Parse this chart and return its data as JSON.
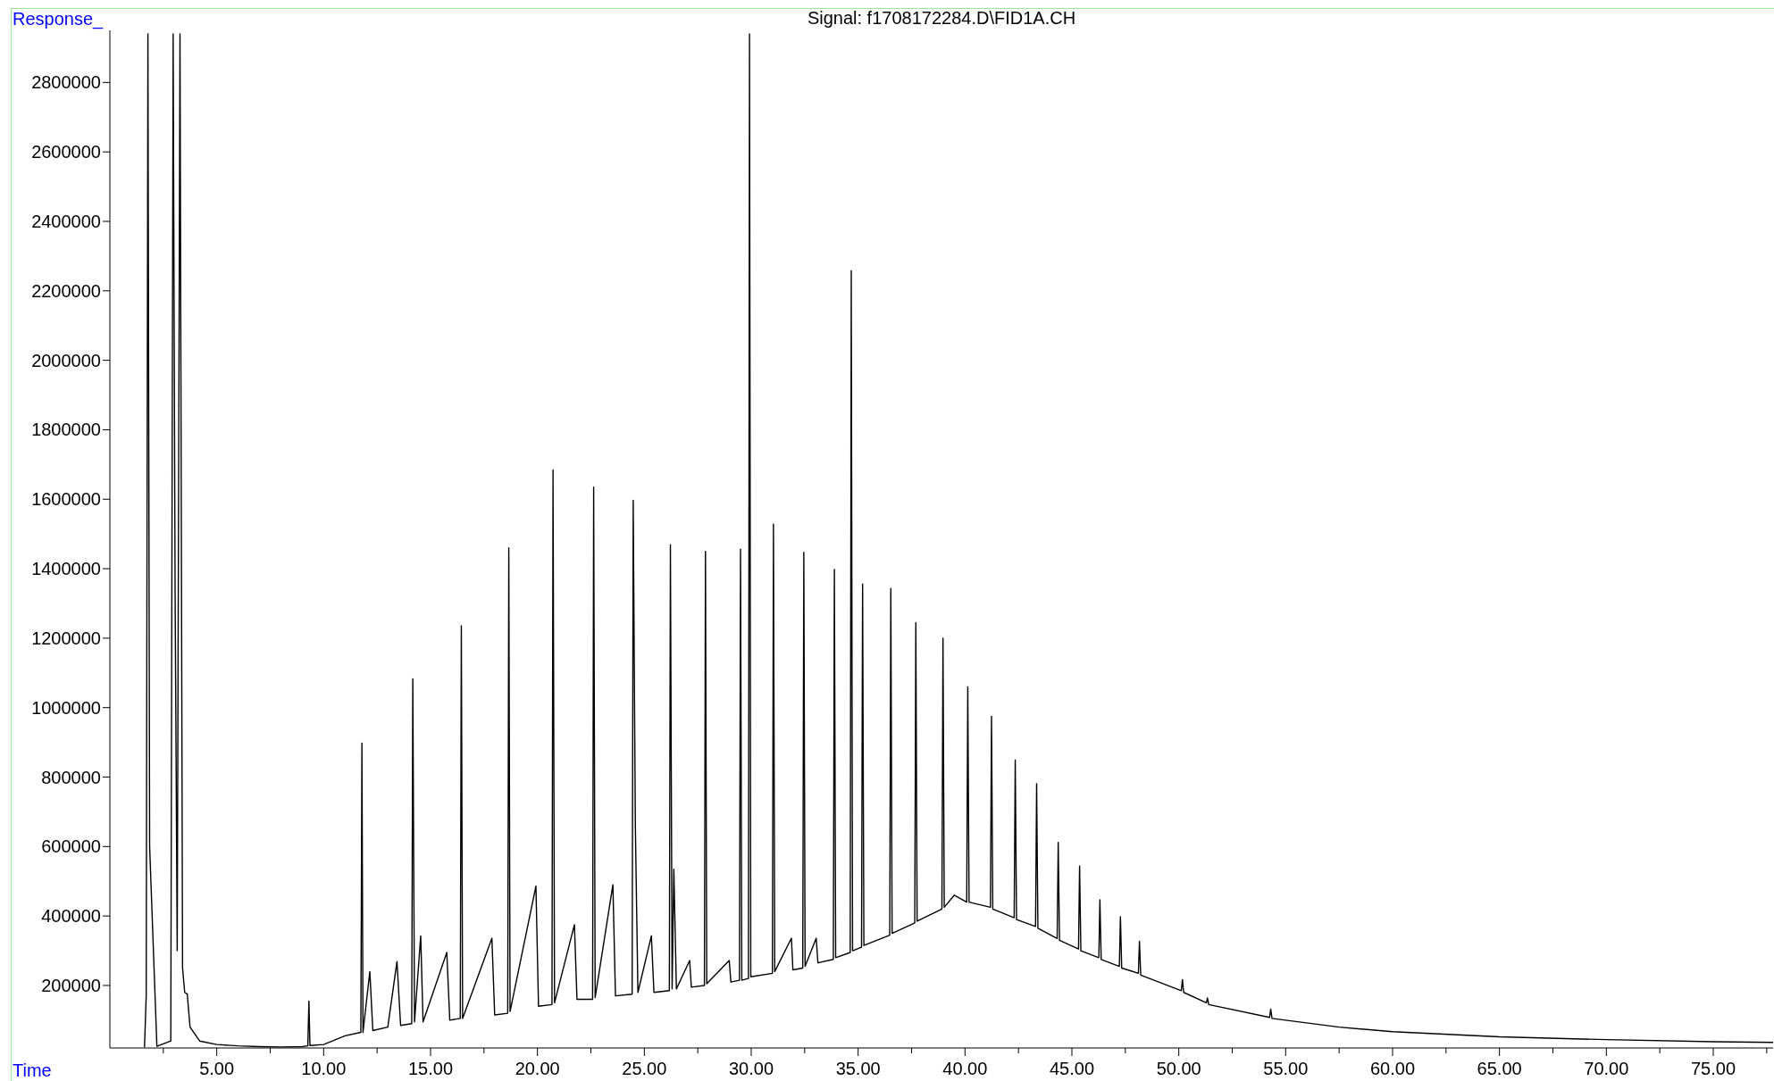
{
  "chart_data": {
    "type": "line",
    "title": "Signal: f1708172284.D\\FID1A.CH",
    "xlabel": "Time",
    "ylabel": "Response_",
    "line_style": "solid",
    "xlim": [
      0,
      77.8
    ],
    "ylim": [
      20000,
      2950000
    ],
    "xticks": [
      {
        "value": 2.5,
        "label": null
      },
      {
        "value": 5,
        "label": "5.00"
      },
      {
        "value": 7.5,
        "label": null
      },
      {
        "value": 10,
        "label": "10.00"
      },
      {
        "value": 12.5,
        "label": null
      },
      {
        "value": 15,
        "label": "15.00"
      },
      {
        "value": 17.5,
        "label": null
      },
      {
        "value": 20,
        "label": "20.00"
      },
      {
        "value": 22.5,
        "label": null
      },
      {
        "value": 25,
        "label": "25.00"
      },
      {
        "value": 27.5,
        "label": null
      },
      {
        "value": 30,
        "label": "30.00"
      },
      {
        "value": 32.5,
        "label": null
      },
      {
        "value": 35,
        "label": "35.00"
      },
      {
        "value": 37.5,
        "label": null
      },
      {
        "value": 40,
        "label": "40.00"
      },
      {
        "value": 42.5,
        "label": null
      },
      {
        "value": 45,
        "label": "45.00"
      },
      {
        "value": 47.5,
        "label": null
      },
      {
        "value": 50,
        "label": "50.00"
      },
      {
        "value": 52.5,
        "label": null
      },
      {
        "value": 55,
        "label": "55.00"
      },
      {
        "value": 57.5,
        "label": null
      },
      {
        "value": 60,
        "label": "60.00"
      },
      {
        "value": 62.5,
        "label": null
      },
      {
        "value": 65,
        "label": "65.00"
      },
      {
        "value": 67.5,
        "label": null
      },
      {
        "value": 70,
        "label": "70.00"
      },
      {
        "value": 72.5,
        "label": null
      },
      {
        "value": 75,
        "label": "75.00"
      },
      {
        "value": 77.5,
        "label": null
      }
    ],
    "yticks": [
      200000,
      400000,
      600000,
      800000,
      1000000,
      1200000,
      1400000,
      1600000,
      1800000,
      2000000,
      2200000,
      2400000,
      2600000,
      2800000
    ],
    "x": [
      1.62,
      1.7,
      1.78,
      1.86,
      2.2,
      2.85,
      2.96,
      3.05,
      3.15,
      3.28,
      3.4,
      3.5,
      3.62,
      3.75,
      4.2,
      5,
      6,
      7,
      8,
      9,
      9.26,
      9.31,
      9.36,
      10,
      11,
      11.74,
      11.79,
      11.84,
      12.16,
      12.3,
      13,
      13.43,
      13.6,
      14.12,
      14.17,
      14.25,
      14.54,
      14.65,
      15.76,
      15.9,
      16.39,
      16.44,
      16.5,
      17.87,
      18,
      18.61,
      18.66,
      18.72,
      19.93,
      20.05,
      20.68,
      20.73,
      20.8,
      21.73,
      21.85,
      22.58,
      22.63,
      22.7,
      23.53,
      23.65,
      24.43,
      24.48,
      24.58,
      24.7,
      25.33,
      25.45,
      26.17,
      26.22,
      26.3,
      26.38,
      26.5,
      27.12,
      27.2,
      27.81,
      27.86,
      27.92,
      28.97,
      29.05,
      29.45,
      29.5,
      29.56,
      29.87,
      29.92,
      29.98,
      30.99,
      31.04,
      31.1,
      31.88,
      31.95,
      32.41,
      32.46,
      32.52,
      33.04,
      33.12,
      33.84,
      33.89,
      33.95,
      34.63,
      34.68,
      34.74,
      35.16,
      35.21,
      35.27,
      36.48,
      36.53,
      36.59,
      37.65,
      37.7,
      37.76,
      38.92,
      38.97,
      39.03,
      39.5,
      40.08,
      40.13,
      40.19,
      41.19,
      41.24,
      41.3,
      42.3,
      42.35,
      42.41,
      43.3,
      43.35,
      43.41,
      44.31,
      44.36,
      44.42,
      45.31,
      45.36,
      45.42,
      46.26,
      46.31,
      46.37,
      47.22,
      47.27,
      47.33,
      48.11,
      48.16,
      48.22,
      50.12,
      50.17,
      50.23,
      51.29,
      51.34,
      51.4,
      54.25,
      54.3,
      54.36,
      55,
      57.5,
      60,
      65,
      70,
      75,
      77.8
    ],
    "series": [
      {
        "color": "#000000",
        "values": [
          22000,
          170000,
          2940000,
          600000,
          25000,
          40000,
          2940000,
          1350000,
          300000,
          2940000,
          250000,
          180000,
          175000,
          80000,
          40000,
          30000,
          26000,
          24000,
          23000,
          24000,
          26000,
          155000,
          27000,
          30000,
          55000,
          65000,
          898000,
          65000,
          240000,
          70000,
          80000,
          269000,
          85000,
          90000,
          1083000,
          95000,
          343000,
          95000,
          295000,
          100000,
          105000,
          1236000,
          105000,
          336000,
          115000,
          120000,
          1460000,
          125000,
          486000,
          140000,
          145000,
          1684000,
          150000,
          375000,
          160000,
          160000,
          1635000,
          165000,
          490000,
          170000,
          175000,
          1597000,
          661000,
          180000,
          343000,
          180000,
          185000,
          1469000,
          190000,
          535000,
          190000,
          272000,
          195000,
          200000,
          1450000,
          205000,
          272000,
          210000,
          215000,
          1456000,
          215000,
          220000,
          2940000,
          225000,
          235000,
          1528000,
          240000,
          336000,
          245000,
          250000,
          1447000,
          255000,
          336000,
          265000,
          275000,
          1398000,
          280000,
          295000,
          2258000,
          300000,
          310000,
          1356000,
          315000,
          345000,
          1343000,
          350000,
          380000,
          1245000,
          385000,
          420000,
          1200000,
          425000,
          460000,
          440000,
          1060000,
          440000,
          425000,
          975000,
          420000,
          395000,
          849000,
          390000,
          370000,
          781000,
          365000,
          335000,
          612000,
          330000,
          305000,
          544000,
          300000,
          280000,
          447000,
          275000,
          255000,
          398000,
          250000,
          235000,
          327000,
          230000,
          185000,
          217000,
          180000,
          150000,
          164000,
          145000,
          108000,
          132000,
          105000,
          100000,
          80000,
          67000,
          52000,
          44000,
          38000,
          36000
        ]
      }
    ]
  }
}
